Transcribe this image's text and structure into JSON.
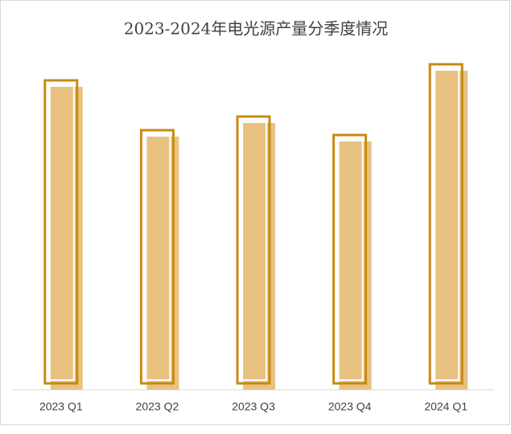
{
  "chart_data": {
    "type": "bar",
    "title": "2023-2024年电光源产量分季度情况",
    "categories": [
      "2023 Q1",
      "2023 Q2",
      "2023 Q3",
      "2023 Q4",
      "2024 Q1"
    ],
    "values": [
      385,
      323,
      340,
      317,
      405
    ],
    "color": "#e9c282",
    "edge_color": "#c98a12",
    "ylim": [
      0,
      420
    ]
  }
}
